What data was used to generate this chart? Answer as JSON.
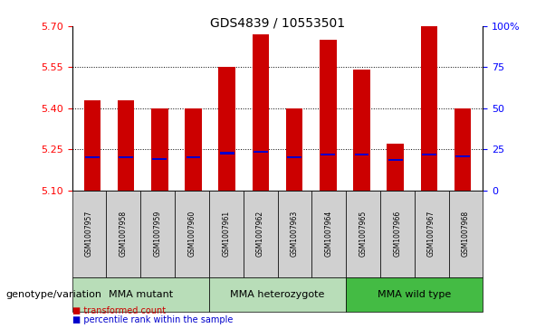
{
  "title": "GDS4839 / 10553501",
  "samples": [
    "GSM1007957",
    "GSM1007958",
    "GSM1007959",
    "GSM1007960",
    "GSM1007961",
    "GSM1007962",
    "GSM1007963",
    "GSM1007964",
    "GSM1007965",
    "GSM1007966",
    "GSM1007967",
    "GSM1007968"
  ],
  "bar_tops": [
    5.43,
    5.43,
    5.4,
    5.4,
    5.55,
    5.67,
    5.4,
    5.65,
    5.54,
    5.27,
    5.7,
    5.4
  ],
  "blue_vals": [
    5.22,
    5.22,
    5.215,
    5.22,
    5.235,
    5.24,
    5.22,
    5.23,
    5.23,
    5.21,
    5.23,
    5.225
  ],
  "bar_bottom": 5.1,
  "ylim": [
    5.1,
    5.7
  ],
  "yticks_left": [
    5.1,
    5.25,
    5.4,
    5.55,
    5.7
  ],
  "yticks_right_vals": [
    0,
    25,
    50,
    75,
    100
  ],
  "yticks_right_labels": [
    "0",
    "25",
    "50",
    "75",
    "100%"
  ],
  "gridlines": [
    5.55,
    5.4,
    5.25
  ],
  "bar_color": "#cc0000",
  "blue_color": "#0000cc",
  "group_data": [
    {
      "label": "MMA mutant",
      "indices": [
        0,
        1,
        2,
        3
      ],
      "color": "#b8ddb8"
    },
    {
      "label": "MMA heterozygote",
      "indices": [
        4,
        5,
        6,
        7
      ],
      "color": "#b8ddb8"
    },
    {
      "label": "MMA wild type",
      "indices": [
        8,
        9,
        10,
        11
      ],
      "color": "#44bb44"
    }
  ],
  "genotype_label": "genotype/variation",
  "legend_items": [
    {
      "label": "transformed count",
      "color": "#cc0000"
    },
    {
      "label": "percentile rank within the sample",
      "color": "#0000cc"
    }
  ],
  "bar_width": 0.5,
  "sample_box_color": "#d0d0d0"
}
